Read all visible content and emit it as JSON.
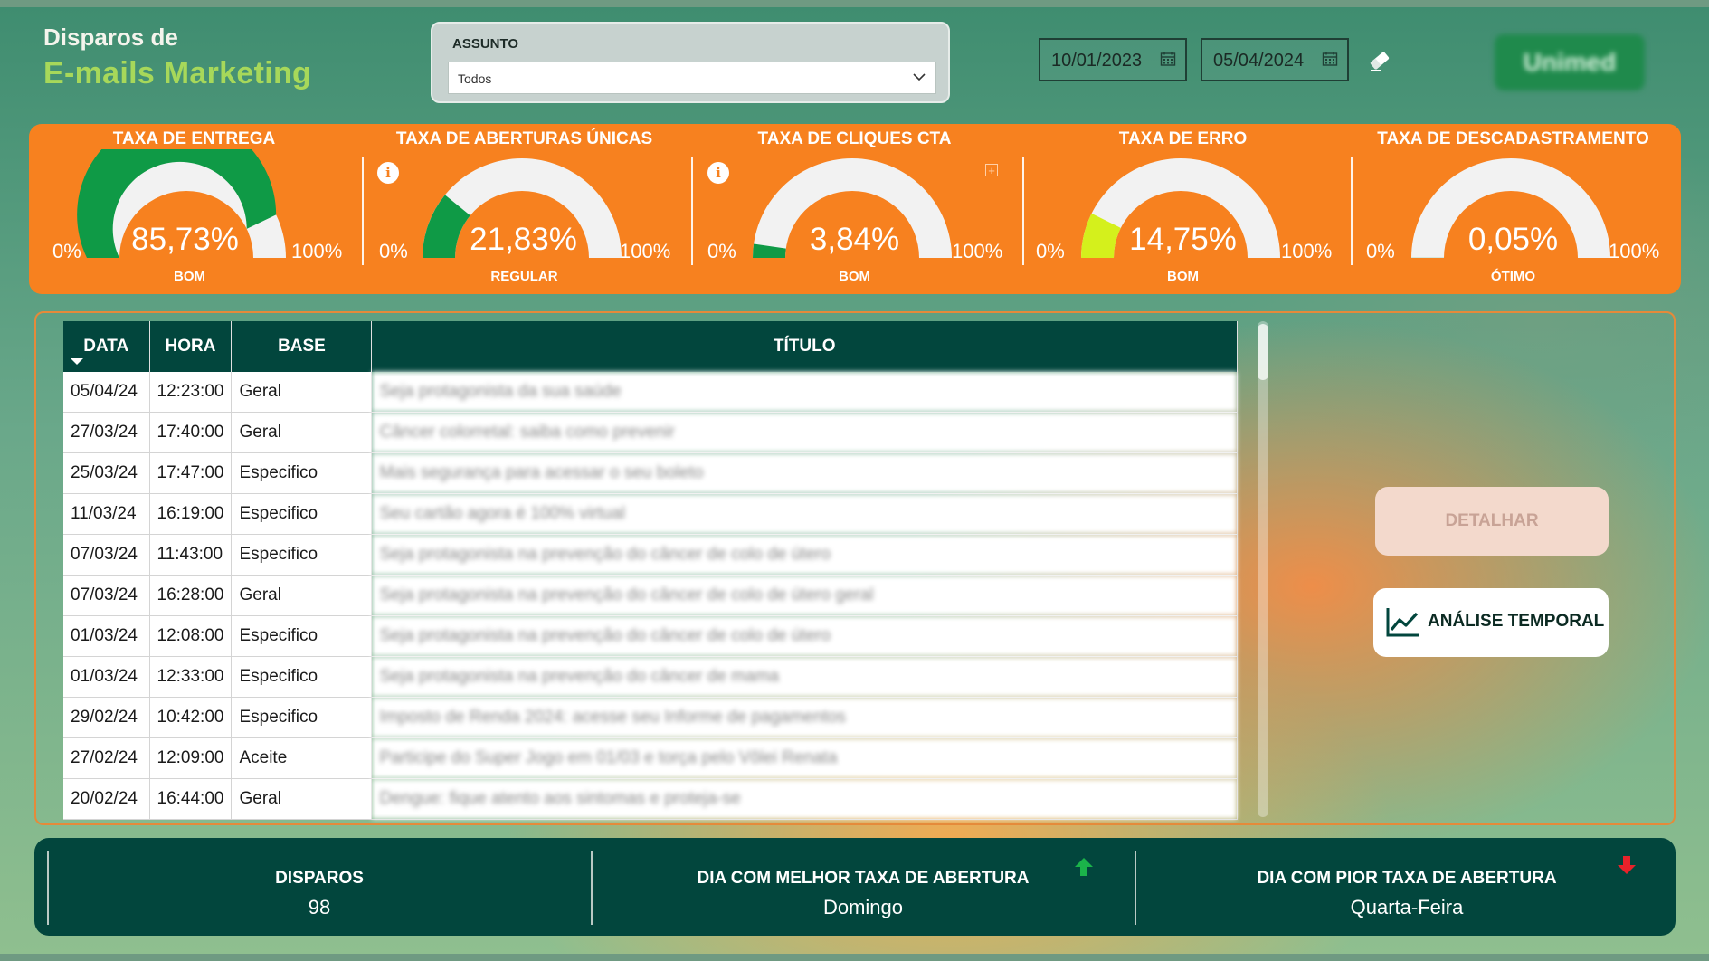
{
  "header": {
    "title_line1": "Disparos de",
    "title_line2": "E-mails Marketing"
  },
  "filter": {
    "label": "ASSUNTO",
    "selected": "Todos"
  },
  "dates": {
    "start": "10/01/2023",
    "end": "05/04/2024"
  },
  "logo_text": "Unimed",
  "kpis": [
    {
      "title": "TAXA DE ENTREGA",
      "value_text": "85,73%",
      "value": 85.73,
      "status": "BOM",
      "min_label": "0%",
      "max_label": "100%",
      "color": "#0f9a46",
      "info": false
    },
    {
      "title": "TAXA DE ABERTURAS ÚNICAS",
      "value_text": "21,83%",
      "value": 21.83,
      "status": "REGULAR",
      "min_label": "0%",
      "max_label": "100%",
      "color": "#0f9a46",
      "info": true
    },
    {
      "title": "TAXA DE CLIQUES CTA",
      "value_text": "3,84%",
      "value": 3.84,
      "status": "BOM",
      "min_label": "0%",
      "max_label": "100%",
      "color": "#0f9a46",
      "info": true
    },
    {
      "title": "TAXA DE ERRO",
      "value_text": "14,75%",
      "value": 14.75,
      "status": "BOM",
      "min_label": "0%",
      "max_label": "100%",
      "color": "#d4f01c",
      "info": false
    },
    {
      "title": "TAXA DE DESCADASTRAMENTO",
      "value_text": "0,05%",
      "value": 0.05,
      "status": "ÓTIMO",
      "min_label": "0%",
      "max_label": "100%",
      "color": "#0f9a46",
      "info": false
    }
  ],
  "table": {
    "columns": [
      "DATA",
      "HORA",
      "BASE",
      "TÍTULO"
    ],
    "rows": [
      [
        "05/04/24",
        "12:23:00",
        "Geral",
        "Seja protagonista da sua saúde"
      ],
      [
        "27/03/24",
        "17:40:00",
        "Geral",
        "Câncer colorretal: saiba como prevenir"
      ],
      [
        "25/03/24",
        "17:47:00",
        "Especifico",
        "Mais segurança para acessar o seu boleto"
      ],
      [
        "11/03/24",
        "16:19:00",
        "Especifico",
        "Seu cartão agora é 100% virtual"
      ],
      [
        "07/03/24",
        "11:43:00",
        "Especifico",
        "Seja protagonista na prevenção do câncer de colo de útero"
      ],
      [
        "07/03/24",
        "16:28:00",
        "Geral",
        "Seja protagonista na prevenção do câncer de colo de útero geral"
      ],
      [
        "01/03/24",
        "12:08:00",
        "Especifico",
        "Seja protagonista na prevenção do câncer de colo de útero"
      ],
      [
        "01/03/24",
        "12:33:00",
        "Especifico",
        "Seja protagonista na prevenção do câncer de mama"
      ],
      [
        "29/02/24",
        "10:42:00",
        "Especifico",
        "Imposto de Renda 2024: acesse seu Informe de pagamentos"
      ],
      [
        "27/02/24",
        "12:09:00",
        "Aceite",
        "Participe do Super Jogo em 01/03 e torça pelo Vôlei Renata"
      ],
      [
        "20/02/24",
        "16:44:00",
        "Geral",
        "Dengue: fique atento aos sintomas e proteja-se"
      ]
    ]
  },
  "buttons": {
    "detail": "DETALHAR",
    "temporal": "ANÁLISE TEMPORAL"
  },
  "stats": [
    {
      "label": "DISPAROS",
      "value": "98"
    },
    {
      "label": "DIA COM MELHOR TAXA DE ABERTURA",
      "value": "Domingo"
    },
    {
      "label": "DIA COM PIOR TAXA DE ABERTURA",
      "value": "Quarta-Feira"
    }
  ],
  "colors": {
    "accent_orange": "#f7811f",
    "dark_green": "#02463d",
    "title_green": "#a7d85a"
  }
}
